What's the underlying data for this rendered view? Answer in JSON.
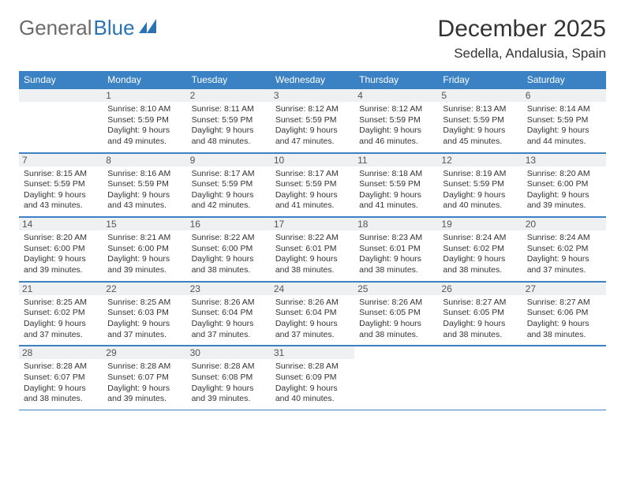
{
  "brand": {
    "part1": "General",
    "part2": "Blue"
  },
  "title": "December 2025",
  "location": "Sedella, Andalusia, Spain",
  "colors": {
    "header_bg": "#3b82c4",
    "daynum_bg": "#eef0f1",
    "border": "#3b82c4",
    "text": "#333333",
    "brand_gray": "#6b6b6b",
    "brand_blue": "#2a72b5"
  },
  "weekdays": [
    "Sunday",
    "Monday",
    "Tuesday",
    "Wednesday",
    "Thursday",
    "Friday",
    "Saturday"
  ],
  "first_weekday_index": 1,
  "days": [
    {
      "n": 1,
      "sunrise": "8:10 AM",
      "sunset": "5:59 PM",
      "daylight": "9 hours and 49 minutes."
    },
    {
      "n": 2,
      "sunrise": "8:11 AM",
      "sunset": "5:59 PM",
      "daylight": "9 hours and 48 minutes."
    },
    {
      "n": 3,
      "sunrise": "8:12 AM",
      "sunset": "5:59 PM",
      "daylight": "9 hours and 47 minutes."
    },
    {
      "n": 4,
      "sunrise": "8:12 AM",
      "sunset": "5:59 PM",
      "daylight": "9 hours and 46 minutes."
    },
    {
      "n": 5,
      "sunrise": "8:13 AM",
      "sunset": "5:59 PM",
      "daylight": "9 hours and 45 minutes."
    },
    {
      "n": 6,
      "sunrise": "8:14 AM",
      "sunset": "5:59 PM",
      "daylight": "9 hours and 44 minutes."
    },
    {
      "n": 7,
      "sunrise": "8:15 AM",
      "sunset": "5:59 PM",
      "daylight": "9 hours and 43 minutes."
    },
    {
      "n": 8,
      "sunrise": "8:16 AM",
      "sunset": "5:59 PM",
      "daylight": "9 hours and 43 minutes."
    },
    {
      "n": 9,
      "sunrise": "8:17 AM",
      "sunset": "5:59 PM",
      "daylight": "9 hours and 42 minutes."
    },
    {
      "n": 10,
      "sunrise": "8:17 AM",
      "sunset": "5:59 PM",
      "daylight": "9 hours and 41 minutes."
    },
    {
      "n": 11,
      "sunrise": "8:18 AM",
      "sunset": "5:59 PM",
      "daylight": "9 hours and 41 minutes."
    },
    {
      "n": 12,
      "sunrise": "8:19 AM",
      "sunset": "5:59 PM",
      "daylight": "9 hours and 40 minutes."
    },
    {
      "n": 13,
      "sunrise": "8:20 AM",
      "sunset": "6:00 PM",
      "daylight": "9 hours and 39 minutes."
    },
    {
      "n": 14,
      "sunrise": "8:20 AM",
      "sunset": "6:00 PM",
      "daylight": "9 hours and 39 minutes."
    },
    {
      "n": 15,
      "sunrise": "8:21 AM",
      "sunset": "6:00 PM",
      "daylight": "9 hours and 39 minutes."
    },
    {
      "n": 16,
      "sunrise": "8:22 AM",
      "sunset": "6:00 PM",
      "daylight": "9 hours and 38 minutes."
    },
    {
      "n": 17,
      "sunrise": "8:22 AM",
      "sunset": "6:01 PM",
      "daylight": "9 hours and 38 minutes."
    },
    {
      "n": 18,
      "sunrise": "8:23 AM",
      "sunset": "6:01 PM",
      "daylight": "9 hours and 38 minutes."
    },
    {
      "n": 19,
      "sunrise": "8:24 AM",
      "sunset": "6:02 PM",
      "daylight": "9 hours and 38 minutes."
    },
    {
      "n": 20,
      "sunrise": "8:24 AM",
      "sunset": "6:02 PM",
      "daylight": "9 hours and 37 minutes."
    },
    {
      "n": 21,
      "sunrise": "8:25 AM",
      "sunset": "6:02 PM",
      "daylight": "9 hours and 37 minutes."
    },
    {
      "n": 22,
      "sunrise": "8:25 AM",
      "sunset": "6:03 PM",
      "daylight": "9 hours and 37 minutes."
    },
    {
      "n": 23,
      "sunrise": "8:26 AM",
      "sunset": "6:04 PM",
      "daylight": "9 hours and 37 minutes."
    },
    {
      "n": 24,
      "sunrise": "8:26 AM",
      "sunset": "6:04 PM",
      "daylight": "9 hours and 37 minutes."
    },
    {
      "n": 25,
      "sunrise": "8:26 AM",
      "sunset": "6:05 PM",
      "daylight": "9 hours and 38 minutes."
    },
    {
      "n": 26,
      "sunrise": "8:27 AM",
      "sunset": "6:05 PM",
      "daylight": "9 hours and 38 minutes."
    },
    {
      "n": 27,
      "sunrise": "8:27 AM",
      "sunset": "6:06 PM",
      "daylight": "9 hours and 38 minutes."
    },
    {
      "n": 28,
      "sunrise": "8:28 AM",
      "sunset": "6:07 PM",
      "daylight": "9 hours and 38 minutes."
    },
    {
      "n": 29,
      "sunrise": "8:28 AM",
      "sunset": "6:07 PM",
      "daylight": "9 hours and 39 minutes."
    },
    {
      "n": 30,
      "sunrise": "8:28 AM",
      "sunset": "6:08 PM",
      "daylight": "9 hours and 39 minutes."
    },
    {
      "n": 31,
      "sunrise": "8:28 AM",
      "sunset": "6:09 PM",
      "daylight": "9 hours and 40 minutes."
    }
  ],
  "labels": {
    "sunrise": "Sunrise:",
    "sunset": "Sunset:",
    "daylight": "Daylight:"
  }
}
